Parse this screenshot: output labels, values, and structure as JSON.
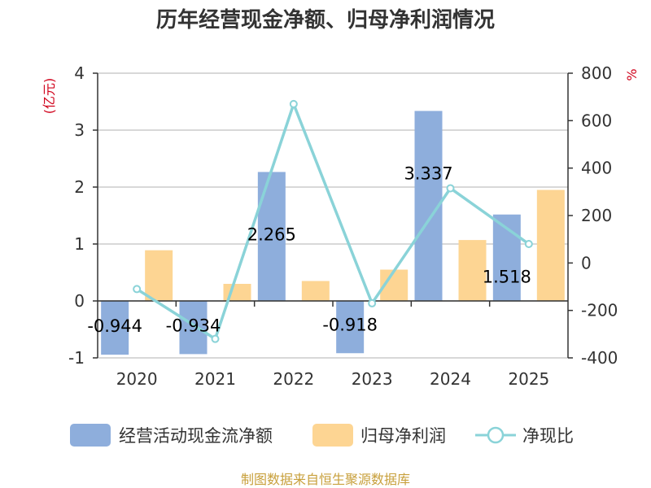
{
  "chart_data": {
    "type": "bar",
    "title": "历年经营现金净额、归母净利润情况",
    "categories": [
      "2020",
      "2021",
      "2022",
      "2023",
      "2024",
      "2025"
    ],
    "left_axis": {
      "unit_label": "(亿元)",
      "ylim": [
        -1,
        4
      ],
      "ticks": [
        "-1",
        "0",
        "1",
        "2",
        "3",
        "4"
      ],
      "tick_values": [
        -1,
        0,
        1,
        2,
        3,
        4
      ]
    },
    "right_axis": {
      "unit_label": "%",
      "ylim": [
        -400,
        800
      ],
      "ticks": [
        "-400",
        "-200",
        "0",
        "200",
        "400",
        "600",
        "800"
      ],
      "tick_values": [
        -400,
        -200,
        0,
        200,
        400,
        600,
        800
      ]
    },
    "series": [
      {
        "name": "经营活动现金流净额",
        "type": "bar",
        "axis": "left",
        "color": "#8eaedc",
        "values": [
          -0.944,
          -0.934,
          2.265,
          -0.918,
          3.337,
          1.518
        ],
        "labels": [
          "-0.944",
          "-0.934",
          "2.265",
          "-0.918",
          "3.337",
          "1.518"
        ]
      },
      {
        "name": "归母净利润",
        "type": "bar",
        "axis": "left",
        "color": "#fdd593",
        "values": [
          0.89,
          0.3,
          0.35,
          0.55,
          1.07,
          1.95
        ]
      },
      {
        "name": "净现比",
        "type": "line",
        "axis": "right",
        "color": "#8ad3d8",
        "values": [
          -110,
          -320,
          670,
          -170,
          315,
          80
        ]
      }
    ],
    "legend": "bottom-center",
    "grid": true
  },
  "source_note": "制图数据来自恒生聚源数据库"
}
